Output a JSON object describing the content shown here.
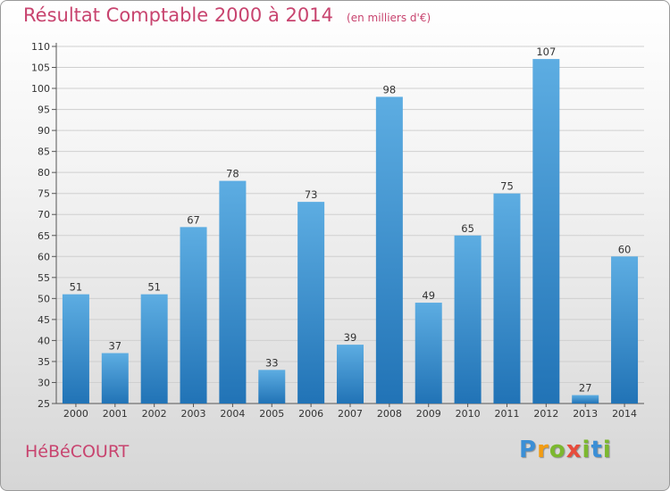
{
  "header": {
    "title": "Résultat Comptable 2000 à 2014",
    "unit": "(en milliers d'€)"
  },
  "commune": "HéBéCOURT",
  "logo": {
    "letters": [
      "P",
      "r",
      "o",
      "x",
      "i",
      "t",
      "i"
    ],
    "colors": [
      "#3b8fd6",
      "#f39c12",
      "#7cb82f",
      "#e74c3c",
      "#7cb82f",
      "#3b8fd6",
      "#7cb82f"
    ]
  },
  "colors": {
    "title": "#c8446f",
    "bar_light": "#5dade2",
    "bar_dark": "#2173b6"
  },
  "chart_data": {
    "type": "bar",
    "title": "Résultat Comptable 2000 à 2014",
    "subtitle": "(en milliers d'€)",
    "xlabel": "",
    "ylabel": "",
    "categories": [
      "2000",
      "2001",
      "2002",
      "2003",
      "2004",
      "2005",
      "2006",
      "2007",
      "2008",
      "2009",
      "2010",
      "2011",
      "2012",
      "2013",
      "2014"
    ],
    "values": [
      51,
      37,
      51,
      67,
      78,
      33,
      73,
      39,
      98,
      49,
      65,
      75,
      107,
      27,
      60
    ],
    "ylim": [
      25,
      110
    ],
    "yticks": [
      25,
      30,
      35,
      40,
      45,
      50,
      55,
      60,
      65,
      70,
      75,
      80,
      85,
      90,
      95,
      100,
      105,
      110
    ],
    "grid": true,
    "legend": "none"
  }
}
